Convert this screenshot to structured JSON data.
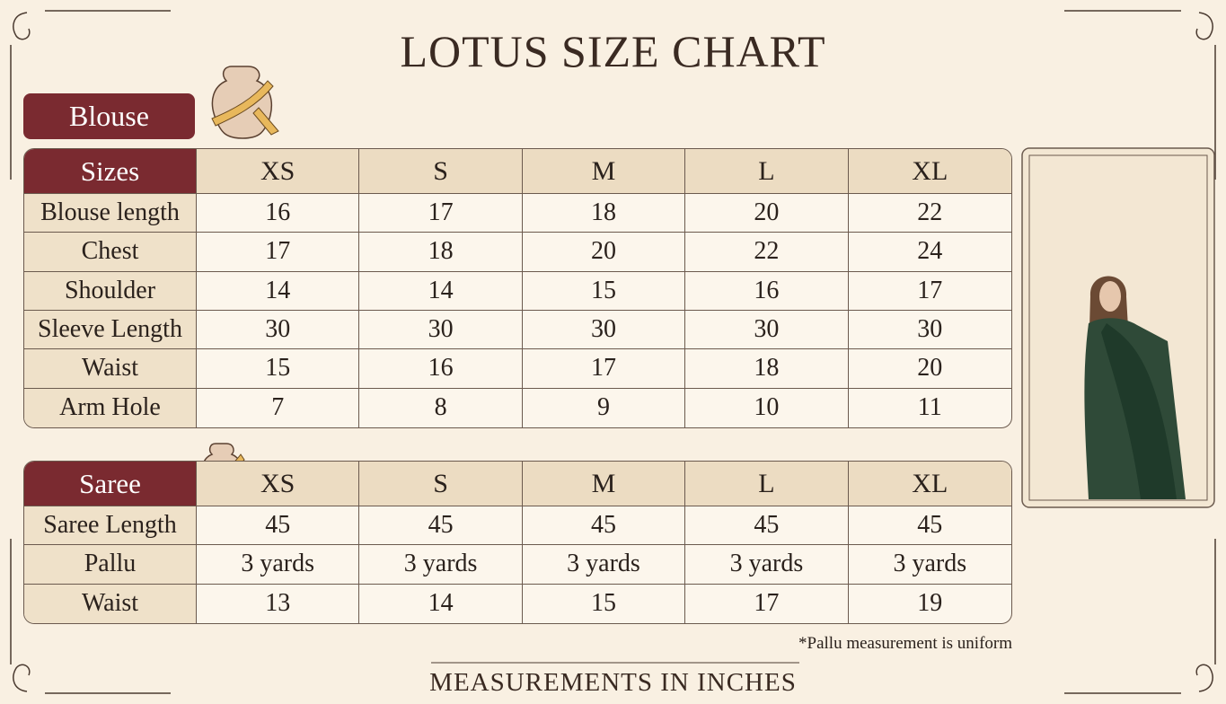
{
  "title": "LOTUS SIZE CHART",
  "blouse": {
    "label": "Blouse",
    "header": [
      "Sizes",
      "XS",
      "S",
      "M",
      "L",
      "XL"
    ],
    "rows": [
      [
        "Blouse length",
        16,
        17,
        18,
        20,
        22
      ],
      [
        "Chest",
        17,
        18,
        20,
        22,
        24
      ],
      [
        "Shoulder",
        14,
        14,
        15,
        16,
        17
      ],
      [
        "Sleeve Length",
        30,
        30,
        30,
        30,
        30
      ],
      [
        "Waist",
        15,
        16,
        17,
        18,
        20
      ],
      [
        "Arm Hole",
        7,
        8,
        9,
        10,
        11
      ]
    ]
  },
  "saree": {
    "header": [
      "Saree",
      "XS",
      "S",
      "M",
      "L",
      "XL"
    ],
    "rows": [
      [
        "Saree Length",
        45,
        45,
        45,
        45,
        45
      ],
      [
        "Pallu",
        "3 yards",
        "3 yards",
        "3 yards",
        "3 yards",
        "3 yards"
      ],
      [
        "Waist",
        13,
        14,
        15,
        17,
        19
      ]
    ]
  },
  "footnote": "*Pallu measurement is uniform",
  "footer": "MEASUREMENTS IN INCHES"
}
